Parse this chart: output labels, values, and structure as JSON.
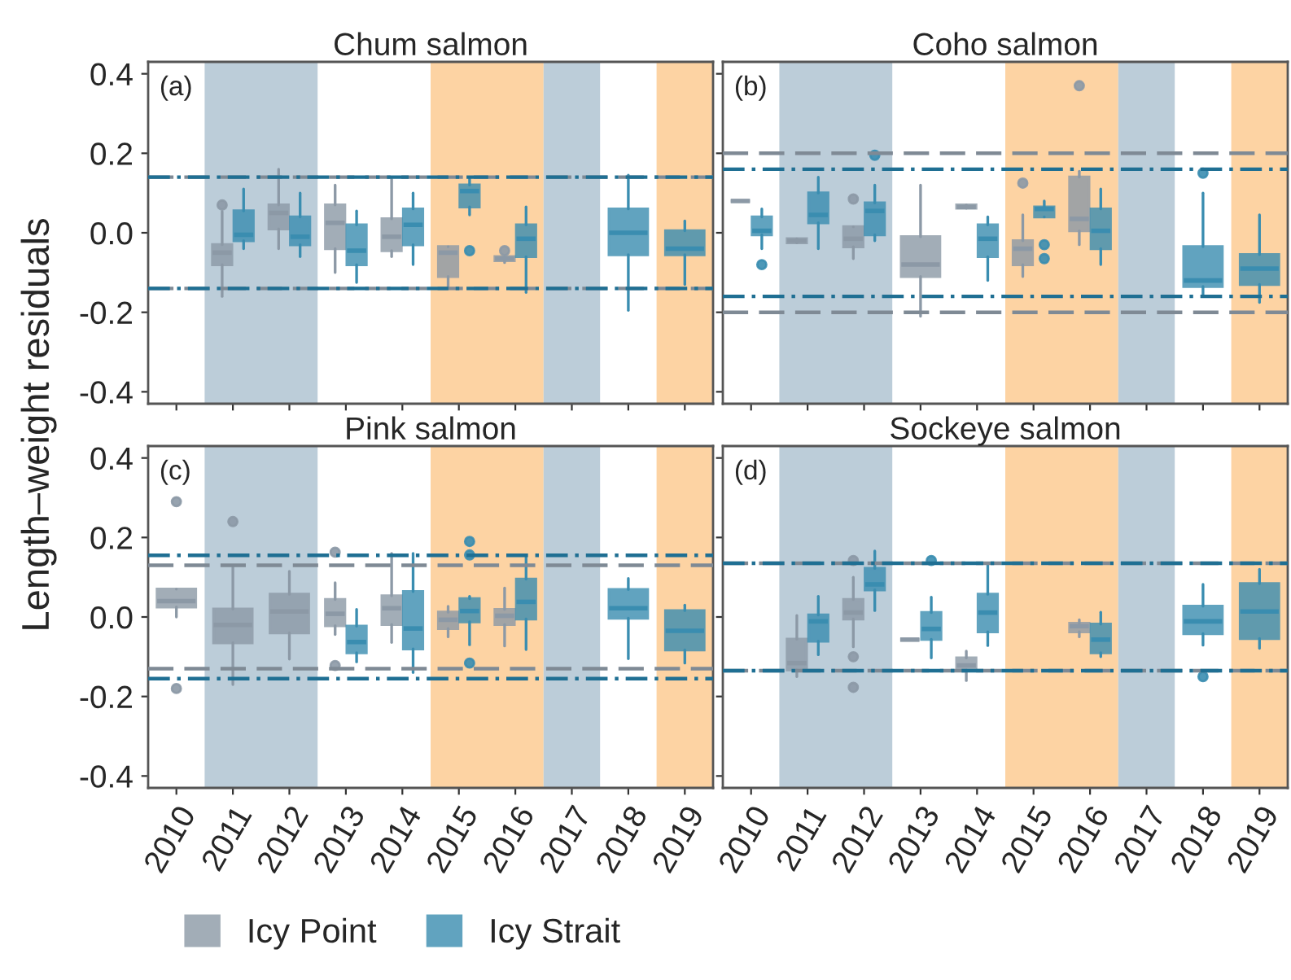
{
  "chart_data": [
    {
      "type": "box",
      "title": "Chum salmon",
      "ylabel": "Length–weight residuals",
      "annotations": [
        "(a)"
      ],
      "tick_labels": "y",
      "legend": "bottom",
      "grid": false,
      "categories": [
        "2010",
        "2011",
        "2012",
        "2013",
        "2014",
        "2015",
        "2016",
        "2017",
        "2018",
        "2019"
      ],
      "ylim": [
        -0.43,
        0.43
      ],
      "yticks": [
        {
          "value": -0.4,
          "label": "-0.4"
        },
        {
          "value": -0.2,
          "label": "-0.2"
        },
        {
          "value": 0.0,
          "label": "0.0"
        },
        {
          "value": 0.2,
          "label": "0.2"
        },
        {
          "value": 0.4,
          "label": "0.4"
        }
      ],
      "bands": [
        {
          "axis": "x",
          "from": "2011",
          "to": "2012",
          "color": "#bccdd9"
        },
        {
          "axis": "x",
          "from": "2015",
          "to": "2016",
          "color": "#fdd3a3"
        },
        {
          "axis": "x",
          "from": "2017",
          "to": "2017",
          "color": "#bccdd9"
        },
        {
          "axis": "x",
          "from": "2019",
          "to": "2019",
          "color": "#fdd3a3"
        }
      ],
      "ref_lines": [
        {
          "axis": "y",
          "value": 0.14,
          "color": "#7f8a95",
          "line_style": "dashed"
        },
        {
          "axis": "y",
          "value": -0.14,
          "color": "#7f8a95",
          "line_style": "dashed"
        },
        {
          "axis": "y",
          "value": 0.14,
          "color": "#1f6f93",
          "line_style": "dashdot"
        },
        {
          "axis": "y",
          "value": -0.14,
          "color": "#1f6f93",
          "line_style": "dashdot"
        }
      ],
      "series": [
        {
          "name": "Icy Point",
          "color": "#8c99a6",
          "boxes": [
            null,
            {
              "low": -0.16,
              "q1": -0.08,
              "median": -0.05,
              "q3": -0.03,
              "high": 0.054,
              "outliers": [
                0.07
              ]
            },
            {
              "low": -0.04,
              "q1": 0.01,
              "median": 0.05,
              "q3": 0.07,
              "high": 0.16
            },
            {
              "low": -0.1,
              "q1": -0.04,
              "median": 0.025,
              "q3": 0.07,
              "high": 0.12
            },
            {
              "low": -0.06,
              "q1": -0.045,
              "median": -0.01,
              "q3": 0.035,
              "high": 0.135
            },
            {
              "low": -0.135,
              "q1": -0.11,
              "median": -0.05,
              "q3": -0.035,
              "high": -0.035
            },
            {
              "low": -0.075,
              "q1": -0.07,
              "median": -0.065,
              "q3": -0.06,
              "high": -0.06,
              "outliers": [
                -0.045
              ]
            },
            null,
            null,
            null
          ]
        },
        {
          "name": "Icy Strait",
          "color": "#3a8db0",
          "boxes": [
            null,
            {
              "low": -0.04,
              "q1": -0.02,
              "median": -0.005,
              "q3": 0.055,
              "high": 0.11
            },
            {
              "low": -0.06,
              "q1": -0.03,
              "median": -0.01,
              "q3": 0.04,
              "high": 0.1
            },
            {
              "low": -0.125,
              "q1": -0.08,
              "median": -0.045,
              "q3": 0.02,
              "high": 0.055
            },
            {
              "low": -0.08,
              "q1": -0.03,
              "median": 0.02,
              "q3": 0.06,
              "high": 0.1
            },
            {
              "low": 0.045,
              "q1": 0.065,
              "median": 0.105,
              "q3": 0.12,
              "high": 0.14,
              "outliers": [
                -0.045
              ]
            },
            {
              "low": -0.15,
              "q1": -0.06,
              "median": -0.015,
              "q3": 0.02,
              "high": 0.065
            },
            null,
            {
              "low": -0.195,
              "q1": -0.055,
              "median": 0.0,
              "q3": 0.06,
              "high": 0.145
            },
            {
              "low": -0.13,
              "q1": -0.055,
              "median": -0.04,
              "q3": 0.005,
              "high": 0.03
            }
          ]
        }
      ]
    },
    {
      "type": "box",
      "title": "Coho salmon",
      "annotations": [
        "(b)"
      ],
      "tick_labels": false,
      "grid": false,
      "categories": [
        "2010",
        "2011",
        "2012",
        "2013",
        "2014",
        "2015",
        "2016",
        "2017",
        "2018",
        "2019"
      ],
      "ylim": [
        -0.43,
        0.43
      ],
      "yticks": [
        -0.4,
        -0.2,
        0.0,
        0.2,
        0.4
      ],
      "bands": [
        {
          "axis": "x",
          "from": "2011",
          "to": "2012",
          "color": "#bccdd9"
        },
        {
          "axis": "x",
          "from": "2015",
          "to": "2016",
          "color": "#fdd3a3"
        },
        {
          "axis": "x",
          "from": "2017",
          "to": "2017",
          "color": "#bccdd9"
        },
        {
          "axis": "x",
          "from": "2019",
          "to": "2019",
          "color": "#fdd3a3"
        }
      ],
      "ref_lines": [
        {
          "axis": "y",
          "value": 0.2,
          "color": "#7f8a95",
          "line_style": "dashed"
        },
        {
          "axis": "y",
          "value": -0.2,
          "color": "#7f8a95",
          "line_style": "dashed"
        },
        {
          "axis": "y",
          "value": 0.16,
          "color": "#1f6f93",
          "line_style": "dashdot"
        },
        {
          "axis": "y",
          "value": -0.16,
          "color": "#1f6f93",
          "line_style": "dashdot"
        }
      ],
      "series": [
        {
          "color": "#8c99a6",
          "boxes": [
            {
              "low": 0.08,
              "q1": 0.08,
              "median": 0.08,
              "q3": 0.08,
              "high": 0.08
            },
            {
              "low": -0.025,
              "q1": -0.025,
              "median": -0.02,
              "q3": -0.015,
              "high": -0.015
            },
            {
              "low": -0.065,
              "q1": -0.035,
              "median": -0.015,
              "q3": 0.015,
              "high": 0.015,
              "outliers": [
                0.085
              ]
            },
            {
              "low": -0.21,
              "q1": -0.11,
              "median": -0.08,
              "q3": -0.01,
              "high": 0.12
            },
            {
              "low": 0.062,
              "q1": 0.062,
              "median": 0.065,
              "q3": 0.07,
              "high": 0.07
            },
            {
              "low": -0.11,
              "q1": -0.08,
              "median": -0.04,
              "q3": -0.02,
              "high": 0.045,
              "outliers": [
                0.125
              ]
            },
            {
              "low": -0.03,
              "q1": 0.005,
              "median": 0.035,
              "q3": 0.14,
              "high": 0.155,
              "outliers": [
                0.37
              ]
            },
            null,
            null,
            null
          ]
        },
        {
          "color": "#3a8db0",
          "boxes": [
            {
              "low": -0.04,
              "q1": -0.005,
              "median": 0.005,
              "q3": 0.04,
              "high": 0.06,
              "outliers": [
                -0.08
              ]
            },
            {
              "low": -0.04,
              "q1": 0.025,
              "median": 0.045,
              "q3": 0.1,
              "high": 0.14
            },
            {
              "low": -0.02,
              "q1": -0.005,
              "median": 0.055,
              "q3": 0.075,
              "high": 0.12,
              "outliers": [
                0.195
              ]
            },
            null,
            {
              "low": -0.12,
              "q1": -0.06,
              "median": -0.015,
              "q3": 0.02,
              "high": 0.04
            },
            {
              "low": 0.04,
              "q1": 0.04,
              "median": 0.06,
              "q3": 0.065,
              "high": 0.08,
              "outliers": [
                -0.03,
                -0.065
              ]
            },
            {
              "low": -0.08,
              "q1": -0.04,
              "median": 0.005,
              "q3": 0.06,
              "high": 0.11
            },
            null,
            {
              "low": -0.155,
              "q1": -0.135,
              "median": -0.12,
              "q3": -0.035,
              "high": 0.1,
              "outliers": [
                0.15
              ]
            },
            {
              "low": -0.175,
              "q1": -0.13,
              "median": -0.09,
              "q3": -0.055,
              "high": 0.045
            }
          ]
        }
      ]
    },
    {
      "type": "box",
      "title": "Pink salmon",
      "annotations": [
        "(c)"
      ],
      "grid": false,
      "categories": [
        "2010",
        "2011",
        "2012",
        "2013",
        "2014",
        "2015",
        "2016",
        "2017",
        "2018",
        "2019"
      ],
      "ylim": [
        -0.43,
        0.43
      ],
      "yticks": [
        {
          "value": -0.4,
          "label": "-0.4"
        },
        {
          "value": -0.2,
          "label": "-0.2"
        },
        {
          "value": 0.0,
          "label": "0.0"
        },
        {
          "value": 0.2,
          "label": "0.2"
        },
        {
          "value": 0.4,
          "label": "0.4"
        }
      ],
      "bands": [
        {
          "axis": "x",
          "from": "2011",
          "to": "2012",
          "color": "#bccdd9"
        },
        {
          "axis": "x",
          "from": "2015",
          "to": "2016",
          "color": "#fdd3a3"
        },
        {
          "axis": "x",
          "from": "2017",
          "to": "2017",
          "color": "#bccdd9"
        },
        {
          "axis": "x",
          "from": "2019",
          "to": "2019",
          "color": "#fdd3a3"
        }
      ],
      "ref_lines": [
        {
          "axis": "y",
          "value": 0.13,
          "color": "#7f8a95",
          "line_style": "dashed"
        },
        {
          "axis": "y",
          "value": -0.13,
          "color": "#7f8a95",
          "line_style": "dashed"
        },
        {
          "axis": "y",
          "value": 0.155,
          "color": "#1f6f93",
          "line_style": "dashdot"
        },
        {
          "axis": "y",
          "value": -0.155,
          "color": "#1f6f93",
          "line_style": "dashdot"
        }
      ],
      "series": [
        {
          "color": "#8c99a6",
          "boxes": [
            {
              "low": 0.0,
              "q1": 0.025,
              "median": 0.04,
              "q3": 0.07,
              "high": 0.07,
              "outliers": [
                0.29,
                -0.18
              ]
            },
            {
              "low": -0.17,
              "q1": -0.065,
              "median": -0.02,
              "q3": 0.02,
              "high": 0.125,
              "outliers": [
                0.24
              ]
            },
            {
              "low": -0.106,
              "q1": -0.04,
              "median": 0.014,
              "q3": 0.057,
              "high": 0.115
            },
            {
              "low": -0.044,
              "q1": -0.022,
              "median": 0.008,
              "q3": 0.044,
              "high": 0.086,
              "outliers": [
                0.163,
                -0.122
              ]
            },
            {
              "low": -0.064,
              "q1": -0.019,
              "median": 0.022,
              "q3": 0.053,
              "high": 0.16
            },
            {
              "low": -0.05,
              "q1": -0.029,
              "median": -0.007,
              "q3": 0.012,
              "high": 0.027
            },
            {
              "low": -0.073,
              "q1": -0.019,
              "median": 0.003,
              "q3": 0.019,
              "high": 0.073
            },
            null,
            null,
            null
          ]
        },
        {
          "color": "#3a8db0",
          "boxes": [
            null,
            null,
            null,
            {
              "low": -0.113,
              "q1": -0.09,
              "median": -0.063,
              "q3": -0.023,
              "high": 0.019
            },
            {
              "low": -0.14,
              "q1": -0.08,
              "median": -0.029,
              "q3": 0.064,
              "high": 0.16
            },
            {
              "low": -0.07,
              "q1": -0.012,
              "median": 0.015,
              "q3": 0.046,
              "high": 0.052,
              "outliers": [
                0.19,
                0.156,
                -0.116
              ]
            },
            {
              "low": -0.082,
              "q1": -0.005,
              "median": 0.038,
              "q3": 0.095,
              "high": 0.152
            },
            null,
            {
              "low": -0.105,
              "q1": -0.003,
              "median": 0.022,
              "q3": 0.069,
              "high": 0.097
            },
            {
              "low": -0.116,
              "q1": -0.083,
              "median": -0.035,
              "q3": 0.016,
              "high": 0.03
            }
          ]
        }
      ]
    },
    {
      "type": "box",
      "title": "Sockeye salmon",
      "annotations": [
        "(d)"
      ],
      "tick_labels": "x",
      "grid": false,
      "categories": [
        "2010",
        "2011",
        "2012",
        "2013",
        "2014",
        "2015",
        "2016",
        "2017",
        "2018",
        "2019"
      ],
      "ylim": [
        -0.43,
        0.43
      ],
      "yticks": [
        -0.4,
        -0.2,
        0.0,
        0.2,
        0.4
      ],
      "bands": [
        {
          "axis": "x",
          "from": "2011",
          "to": "2012",
          "color": "#bccdd9"
        },
        {
          "axis": "x",
          "from": "2015",
          "to": "2016",
          "color": "#fdd3a3"
        },
        {
          "axis": "x",
          "from": "2017",
          "to": "2017",
          "color": "#bccdd9"
        },
        {
          "axis": "x",
          "from": "2019",
          "to": "2019",
          "color": "#fdd3a3"
        }
      ],
      "ref_lines": [
        {
          "axis": "y",
          "value": 0.135,
          "color": "#7f8a95",
          "line_style": "dashed"
        },
        {
          "axis": "y",
          "value": -0.135,
          "color": "#7f8a95",
          "line_style": "dashed"
        },
        {
          "axis": "y",
          "value": 0.135,
          "color": "#1f6f93",
          "line_style": "dashdot"
        },
        {
          "axis": "y",
          "value": -0.135,
          "color": "#1f6f93",
          "line_style": "dashdot"
        }
      ],
      "series": [
        {
          "color": "#8c99a6",
          "boxes": [
            null,
            {
              "low": -0.15,
              "q1": -0.133,
              "median": -0.116,
              "q3": -0.056,
              "high": 0.004
            },
            {
              "low": -0.075,
              "q1": -0.005,
              "median": 0.011,
              "q3": 0.044,
              "high": 0.1,
              "outliers": [
                0.142,
                -0.1,
                -0.177
              ]
            },
            {
              "low": -0.057,
              "q1": -0.057,
              "median": -0.057,
              "q3": -0.057,
              "high": -0.057
            },
            {
              "low": -0.16,
              "q1": -0.133,
              "median": -0.122,
              "q3": -0.103,
              "high": -0.086
            },
            null,
            {
              "low": -0.05,
              "q1": -0.037,
              "median": -0.023,
              "q3": -0.016,
              "high": -0.007
            },
            null,
            null,
            null
          ]
        },
        {
          "color": "#3a8db0",
          "boxes": [
            null,
            {
              "low": -0.095,
              "q1": -0.061,
              "median": -0.011,
              "q3": 0.005,
              "high": 0.052
            },
            {
              "low": 0.016,
              "q1": 0.068,
              "median": 0.082,
              "q3": 0.122,
              "high": 0.166
            },
            {
              "low": -0.103,
              "q1": -0.056,
              "median": -0.03,
              "q3": 0.011,
              "high": 0.05,
              "outliers": [
                0.142
              ]
            },
            {
              "low": -0.072,
              "q1": -0.037,
              "median": 0.011,
              "q3": 0.057,
              "high": 0.133
            },
            null,
            {
              "low": -0.1,
              "q1": -0.09,
              "median": -0.057,
              "q3": -0.018,
              "high": 0.012
            },
            null,
            {
              "low": -0.071,
              "q1": -0.042,
              "median": -0.011,
              "q3": 0.027,
              "high": 0.082,
              "outliers": [
                -0.15
              ]
            },
            {
              "low": -0.079,
              "q1": -0.054,
              "median": 0.014,
              "q3": 0.084,
              "high": 0.12
            }
          ]
        }
      ]
    }
  ]
}
